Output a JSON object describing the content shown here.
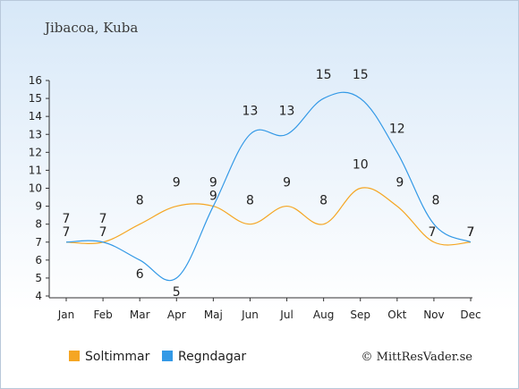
{
  "title": "Jibacoa, Kuba",
  "credit": "© MittResVader.se",
  "colors": {
    "sun": "#f5a623",
    "rain": "#3399e6",
    "axis": "#333333",
    "grid": "#333333"
  },
  "chart_data": {
    "type": "line",
    "title": "Jibacoa, Kuba",
    "categories": [
      "Jan",
      "Feb",
      "Mar",
      "Apr",
      "Maj",
      "Jun",
      "Jul",
      "Aug",
      "Sep",
      "Okt",
      "Nov",
      "Dec"
    ],
    "ylim": [
      4,
      16
    ],
    "yticks": [
      4,
      5,
      6,
      7,
      8,
      9,
      10,
      11,
      12,
      13,
      14,
      15,
      16
    ],
    "grid": false,
    "legend": "bottom-left",
    "series": [
      {
        "name": "Soltimmar",
        "color": "#f5a623",
        "values": [
          7,
          7,
          8,
          9,
          9,
          8,
          9,
          8,
          10,
          9,
          7,
          7
        ]
      },
      {
        "name": "Regndagar",
        "color": "#3399e6",
        "values": [
          7,
          7,
          6,
          5,
          9,
          13,
          13,
          15,
          15,
          12,
          8,
          7
        ]
      }
    ]
  }
}
